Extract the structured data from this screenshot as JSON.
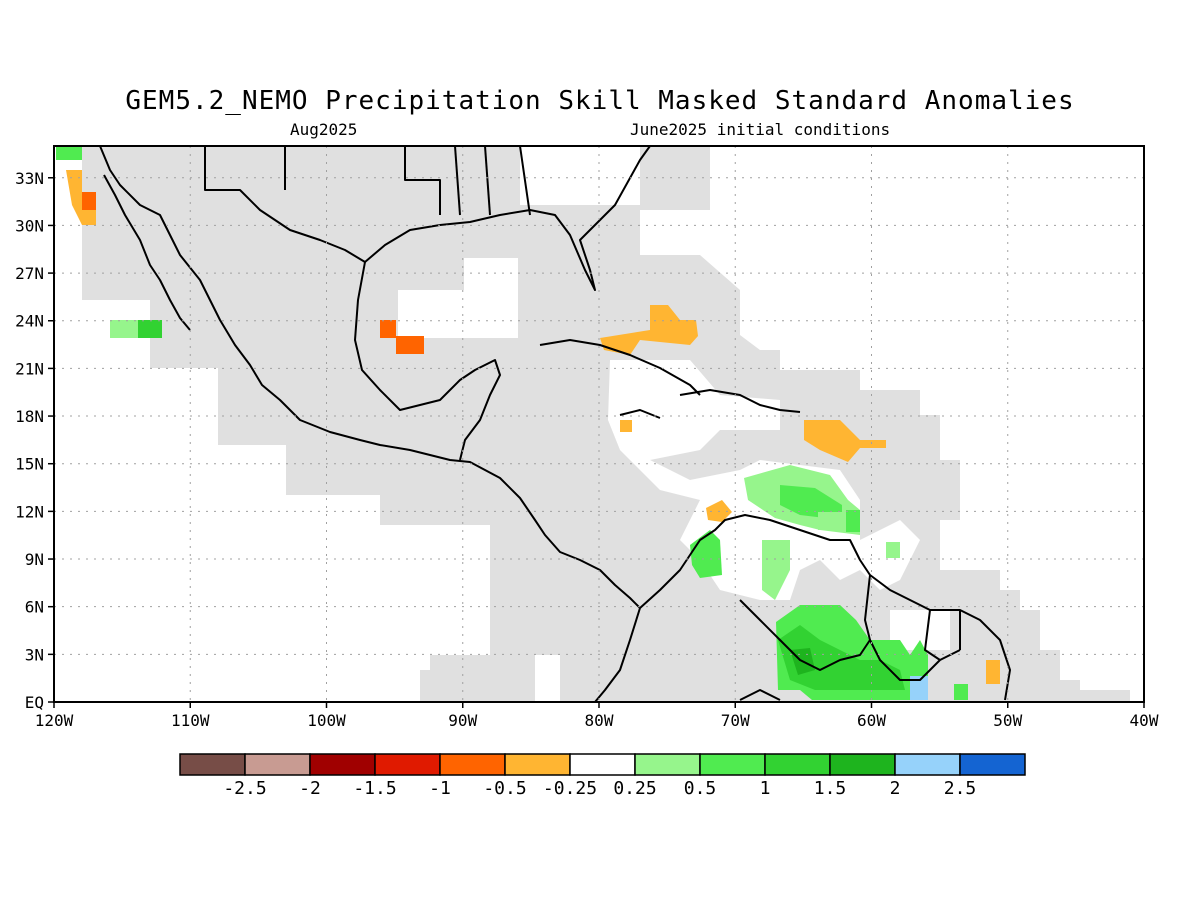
{
  "title": "GEM5.2_NEMO Precipitation Skill Masked Standard Anomalies",
  "subtitle_left": "Aug2025",
  "subtitle_right": "June2025 initial conditions",
  "map": {
    "lat_labels": [
      "33N",
      "30N",
      "27N",
      "24N",
      "21N",
      "18N",
      "15N",
      "12N",
      "9N",
      "6N",
      "3N",
      "EQ"
    ],
    "lon_labels": [
      "120W",
      "110W",
      "100W",
      "90W",
      "80W",
      "70W",
      "60W",
      "50W",
      "40W"
    ],
    "lat_range": [
      0,
      35
    ],
    "lon_range": [
      -120,
      -40
    ],
    "grid": true,
    "mask_color": "#e0e0e0"
  },
  "legend": {
    "colors": [
      "#774d47",
      "#c89b92",
      "#a00000",
      "#e01a00",
      "#ff6400",
      "#ffb532",
      "#ffffff",
      "#96f58c",
      "#50eb50",
      "#32d232",
      "#1eb41e",
      "#96d2fa",
      "#1464d2"
    ],
    "labels": [
      "-2.5",
      "-2",
      "-1.5",
      "-1",
      "-0.5",
      "-0.25",
      "0.25",
      "0.5",
      "1",
      "1.5",
      "2",
      "2.5"
    ]
  }
}
